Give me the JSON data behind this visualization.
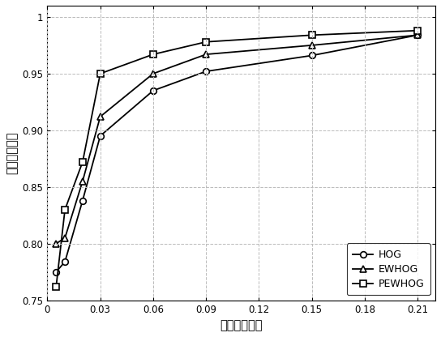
{
  "HOG_x": [
    0.005,
    0.01,
    0.02,
    0.03,
    0.06,
    0.09,
    0.15,
    0.21
  ],
  "HOG_y": [
    0.775,
    0.784,
    0.838,
    0.895,
    0.935,
    0.952,
    0.966,
    0.984
  ],
  "EWHOG_x": [
    0.005,
    0.01,
    0.02,
    0.03,
    0.06,
    0.09,
    0.15,
    0.21
  ],
  "EWHOG_y": [
    0.8,
    0.805,
    0.855,
    0.912,
    0.95,
    0.967,
    0.975,
    0.984
  ],
  "PEWHOG_x": [
    0.005,
    0.01,
    0.02,
    0.03,
    0.06,
    0.09,
    0.15,
    0.21
  ],
  "PEWHOG_y": [
    0.762,
    0.83,
    0.872,
    0.95,
    0.967,
    0.978,
    0.984,
    0.988
  ],
  "xlabel": "负样本误判率",
  "ylabel": "正样本召回率",
  "xlim": [
    0,
    0.22
  ],
  "ylim": [
    0.75,
    1.01
  ],
  "xticks": [
    0.0,
    0.03,
    0.06,
    0.09,
    0.12,
    0.15,
    0.18,
    0.21
  ],
  "xtick_labels": [
    "0",
    "0.03",
    "0.06",
    "0.09",
    "0.12",
    "0.15",
    "0.18",
    "0.21"
  ],
  "yticks": [
    0.75,
    0.8,
    0.85,
    0.9,
    0.95,
    1.0
  ],
  "ytick_labels": [
    "0.75",
    "0.80",
    "0.85",
    "0.90",
    "0.95",
    "1"
  ],
  "legend_labels": [
    "HOG",
    "EWHOG",
    "PEWHOG"
  ],
  "line_color": "#000000",
  "background_color": "#ffffff",
  "grid_color": "#bbbbbb"
}
